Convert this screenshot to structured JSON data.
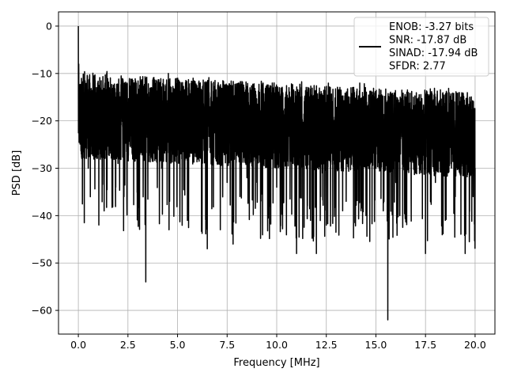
{
  "chart_data": {
    "type": "line",
    "title": "",
    "xlabel": "Frequency [MHz]",
    "ylabel": "PSD [dB]",
    "xlim": [
      -1.0,
      21.0
    ],
    "ylim": [
      -65.0,
      3.0
    ],
    "xticks": [
      0.0,
      2.5,
      5.0,
      7.5,
      10.0,
      12.5,
      15.0,
      17.5,
      20.0
    ],
    "xtick_labels": [
      "0.0",
      "2.5",
      "5.0",
      "7.5",
      "10.0",
      "12.5",
      "15.0",
      "17.5",
      "20.0"
    ],
    "yticks": [
      0,
      -10,
      -20,
      -30,
      -40,
      -50,
      -60
    ],
    "ytick_labels": [
      "0",
      "−10",
      "−20",
      "−30",
      "−40",
      "−50",
      "−60"
    ],
    "grid": true,
    "line_color": "#000000",
    "legend": {
      "placement": "upper right",
      "entries": [
        "ENOB: -3.27 bits",
        "SNR: -17.87 dB",
        "SINAD: -17.94 dB",
        "SFDR: 2.77"
      ]
    },
    "series": [
      {
        "x": [
          0.0,
          0.02,
          0.05,
          0.1,
          0.15,
          0.2,
          0.3,
          0.4,
          0.5,
          0.7,
          1.0,
          1.3,
          1.6,
          2.0,
          2.3,
          2.6,
          3.0,
          3.4,
          3.8,
          4.2,
          4.6,
          5.0,
          5.5,
          6.0,
          6.5,
          7.0,
          7.5,
          7.8,
          8.0,
          8.5,
          9.0,
          9.5,
          10.0,
          10.5,
          11.0,
          11.5,
          12.0,
          12.3,
          12.5,
          13.0,
          13.5,
          14.0,
          14.5,
          15.0,
          15.6,
          16.0,
          16.5,
          17.0,
          17.5,
          18.0,
          18.5,
          19.0,
          19.5,
          19.9,
          20.0
        ],
        "y": [
          0.0,
          -8.0,
          -20.0,
          -17.0,
          -27.0,
          -12.0,
          -41.5,
          -21.0,
          -30.0,
          -22.0,
          -25.0,
          -39.0,
          -24.0,
          -29.0,
          -36.0,
          -25.0,
          -28.0,
          -54.0,
          -26.0,
          -30.0,
          -37.0,
          -25.0,
          -41.0,
          -26.0,
          -47.0,
          -29.0,
          -33.0,
          -46.0,
          -27.0,
          -32.0,
          -33.0,
          -28.0,
          -34.0,
          -30.0,
          -48.0,
          -30.0,
          -48.0,
          -31.0,
          -42.0,
          -29.0,
          -37.0,
          -32.0,
          -40.0,
          -30.0,
          -62.0,
          -33.0,
          -38.0,
          -31.0,
          -48.0,
          -33.0,
          -41.0,
          -36.0,
          -48.0,
          -36.0,
          -30.0
        ]
      }
    ]
  }
}
